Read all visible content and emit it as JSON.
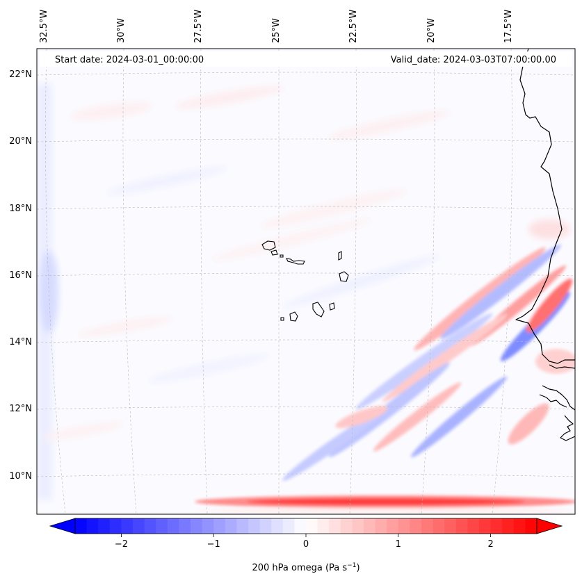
{
  "map": {
    "start_date": "Start date: 2024-03-01_00:00:00",
    "valid_date": "Valid_date: 2024-03-03T07:00:00.00",
    "lon_labels": [
      "32.5°W",
      "30°W",
      "27.5°W",
      "25°W",
      "22.5°W",
      "20°W",
      "17.5°W"
    ],
    "lat_labels": [
      "22°N",
      "20°N",
      "18°N",
      "16°N",
      "14°N",
      "12°N",
      "10°N"
    ],
    "extent": {
      "lon_min": -32.8,
      "lon_max": -15.8,
      "lat_min": 8.9,
      "lat_max": 22.8
    }
  },
  "colorbar": {
    "label_main": "200 hPa omega (Pa s",
    "label_sup": "−1",
    "label_end": ")",
    "ticks": [
      {
        "value": -2,
        "label": "−2"
      },
      {
        "value": -1,
        "label": "−1"
      },
      {
        "value": 0,
        "label": "0"
      },
      {
        "value": 1,
        "label": "1"
      },
      {
        "value": 2,
        "label": "2"
      }
    ],
    "range": [
      -2.5,
      2.5
    ],
    "levels": 40,
    "colormap": "bwr",
    "extend": "both"
  },
  "colors": {
    "negative": "#0000ff",
    "zero": "#ffffff",
    "positive": "#ff0000",
    "coast": "#000000"
  }
}
